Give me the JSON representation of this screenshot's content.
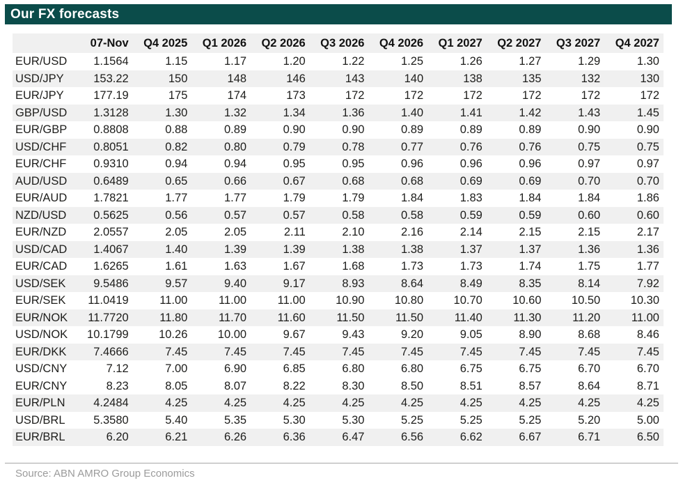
{
  "header": {
    "title": "Our FX forecasts"
  },
  "footer": {
    "source": "Source: ABN AMRO Group Economics"
  },
  "colors": {
    "title_bar_bg": "#0B4C4A",
    "title_text": "#FFFFFF",
    "header_row_bg": "#F0F0F0",
    "row_stripe_bg": "#F0F0F0",
    "body_text": "#1D1D1B",
    "source_text": "#9B9B9B",
    "rule": "#A6A6A6"
  },
  "chart_data": {
    "type": "table",
    "title": "Our FX forecasts",
    "columns": [
      "",
      "07-Nov",
      "Q4 2025",
      "Q1 2026",
      "Q2 2026",
      "Q3 2026",
      "Q4 2026",
      "Q1 2027",
      "Q2 2027",
      "Q3 2027",
      "Q4 2027"
    ],
    "rows": [
      {
        "pair": "EUR/USD",
        "shaded": false,
        "values": [
          "1.1564",
          "1.15",
          "1.17",
          "1.20",
          "1.22",
          "1.25",
          "1.26",
          "1.27",
          "1.29",
          "1.30"
        ]
      },
      {
        "pair": "USD/JPY",
        "shaded": true,
        "values": [
          "153.22",
          "150",
          "148",
          "146",
          "143",
          "140",
          "138",
          "135",
          "132",
          "130"
        ]
      },
      {
        "pair": "EUR/JPY",
        "shaded": false,
        "values": [
          "177.19",
          "175",
          "174",
          "173",
          "172",
          "172",
          "172",
          "172",
          "172",
          "172"
        ]
      },
      {
        "pair": "GBP/USD",
        "shaded": true,
        "values": [
          "1.3128",
          "1.30",
          "1.32",
          "1.34",
          "1.36",
          "1.40",
          "1.41",
          "1.42",
          "1.43",
          "1.45"
        ]
      },
      {
        "pair": "EUR/GBP",
        "shaded": false,
        "values": [
          "0.8808",
          "0.88",
          "0.89",
          "0.90",
          "0.90",
          "0.89",
          "0.89",
          "0.89",
          "0.90",
          "0.90"
        ]
      },
      {
        "pair": "USD/CHF",
        "shaded": true,
        "values": [
          "0.8051",
          "0.82",
          "0.80",
          "0.79",
          "0.78",
          "0.77",
          "0.76",
          "0.76",
          "0.75",
          "0.75"
        ]
      },
      {
        "pair": "EUR/CHF",
        "shaded": false,
        "values": [
          "0.9310",
          "0.94",
          "0.94",
          "0.95",
          "0.95",
          "0.96",
          "0.96",
          "0.96",
          "0.97",
          "0.97"
        ]
      },
      {
        "pair": "AUD/USD",
        "shaded": true,
        "values": [
          "0.6489",
          "0.65",
          "0.66",
          "0.67",
          "0.68",
          "0.68",
          "0.69",
          "0.69",
          "0.70",
          "0.70"
        ]
      },
      {
        "pair": "EUR/AUD",
        "shaded": false,
        "values": [
          "1.7821",
          "1.77",
          "1.77",
          "1.79",
          "1.79",
          "1.84",
          "1.83",
          "1.84",
          "1.84",
          "1.86"
        ]
      },
      {
        "pair": "NZD/USD",
        "shaded": true,
        "values": [
          "0.5625",
          "0.56",
          "0.57",
          "0.57",
          "0.58",
          "0.58",
          "0.59",
          "0.59",
          "0.60",
          "0.60"
        ]
      },
      {
        "pair": "EUR/NZD",
        "shaded": false,
        "values": [
          "2.0557",
          "2.05",
          "2.05",
          "2.11",
          "2.10",
          "2.16",
          "2.14",
          "2.15",
          "2.15",
          "2.17"
        ]
      },
      {
        "pair": "USD/CAD",
        "shaded": true,
        "values": [
          "1.4067",
          "1.40",
          "1.39",
          "1.39",
          "1.38",
          "1.38",
          "1.37",
          "1.37",
          "1.36",
          "1.36"
        ]
      },
      {
        "pair": "EUR/CAD",
        "shaded": false,
        "values": [
          "1.6265",
          "1.61",
          "1.63",
          "1.67",
          "1.68",
          "1.73",
          "1.73",
          "1.74",
          "1.75",
          "1.77"
        ]
      },
      {
        "pair": "USD/SEK",
        "shaded": true,
        "values": [
          "9.5486",
          "9.57",
          "9.40",
          "9.17",
          "8.93",
          "8.64",
          "8.49",
          "8.35",
          "8.14",
          "7.92"
        ]
      },
      {
        "pair": "EUR/SEK",
        "shaded": false,
        "values": [
          "11.0419",
          "11.00",
          "11.00",
          "11.00",
          "10.90",
          "10.80",
          "10.70",
          "10.60",
          "10.50",
          "10.30"
        ]
      },
      {
        "pair": "EUR/NOK",
        "shaded": true,
        "values": [
          "11.7720",
          "11.80",
          "11.70",
          "11.60",
          "11.50",
          "11.50",
          "11.40",
          "11.30",
          "11.20",
          "11.00"
        ]
      },
      {
        "pair": "USD/NOK",
        "shaded": false,
        "values": [
          "10.1799",
          "10.26",
          "10.00",
          "9.67",
          "9.43",
          "9.20",
          "9.05",
          "8.90",
          "8.68",
          "8.46"
        ]
      },
      {
        "pair": "EUR/DKK",
        "shaded": true,
        "values": [
          "7.4666",
          "7.45",
          "7.45",
          "7.45",
          "7.45",
          "7.45",
          "7.45",
          "7.45",
          "7.45",
          "7.45"
        ]
      },
      {
        "pair": "USD/CNY",
        "shaded": false,
        "values": [
          "7.12",
          "7.00",
          "6.90",
          "6.85",
          "6.80",
          "6.80",
          "6.75",
          "6.75",
          "6.70",
          "6.70"
        ]
      },
      {
        "pair": "EUR/CNY",
        "shaded": false,
        "values": [
          "8.23",
          "8.05",
          "8.07",
          "8.22",
          "8.30",
          "8.50",
          "8.51",
          "8.57",
          "8.64",
          "8.71"
        ]
      },
      {
        "pair": "EUR/PLN",
        "shaded": true,
        "values": [
          "4.2484",
          "4.25",
          "4.25",
          "4.25",
          "4.25",
          "4.25",
          "4.25",
          "4.25",
          "4.25",
          "4.25"
        ]
      },
      {
        "pair": "USD/BRL",
        "shaded": false,
        "values": [
          "5.3580",
          "5.40",
          "5.35",
          "5.30",
          "5.30",
          "5.25",
          "5.25",
          "5.25",
          "5.20",
          "5.00"
        ]
      },
      {
        "pair": "EUR/BRL",
        "shaded": true,
        "values": [
          "6.20",
          "6.21",
          "6.26",
          "6.36",
          "6.47",
          "6.56",
          "6.62",
          "6.67",
          "6.71",
          "6.50"
        ]
      }
    ]
  }
}
